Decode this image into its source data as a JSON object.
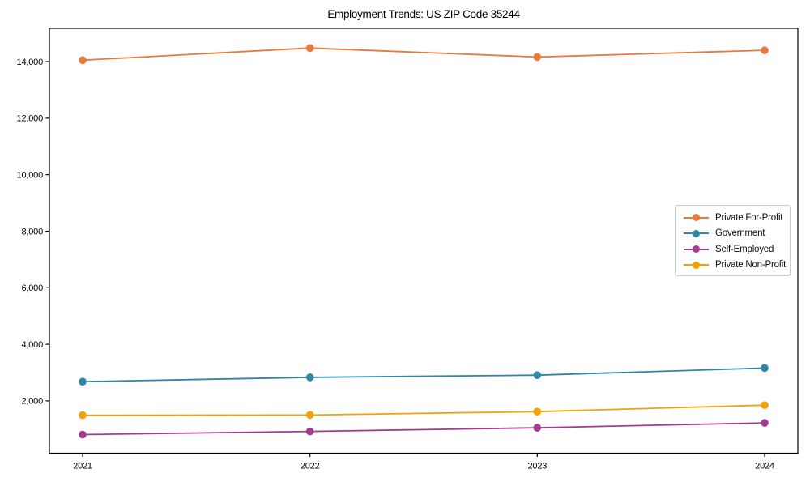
{
  "figure": {
    "title": "Employment Trends: US ZIP Code 35244"
  },
  "chart_data": {
    "type": "line",
    "title": "Employment Trends: US ZIP Code 35244",
    "categories": [
      "2021",
      "2022",
      "2023",
      "2024"
    ],
    "series": [
      {
        "name": "Private For-Profit",
        "color": "#E87A3E",
        "values": [
          14050,
          14480,
          14160,
          14400
        ]
      },
      {
        "name": "Government",
        "color": "#2E87A6",
        "values": [
          2680,
          2830,
          2910,
          3160
        ]
      },
      {
        "name": "Self-Employed",
        "color": "#A43B8F",
        "values": [
          810,
          920,
          1050,
          1220
        ]
      },
      {
        "name": "Private Non-Profit",
        "color": "#F4A109",
        "values": [
          1490,
          1500,
          1620,
          1850
        ]
      }
    ],
    "xlabel": "",
    "ylabel": "",
    "yticks": [
      2000,
      4000,
      6000,
      8000,
      10000,
      12000,
      14000
    ],
    "ylim": [
      150,
      15175
    ],
    "grid": false,
    "legend_position": "center-right",
    "marker": "circle",
    "axis_color": "#000000"
  }
}
